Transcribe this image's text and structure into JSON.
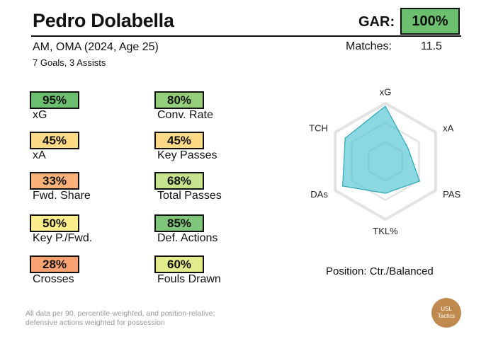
{
  "player": {
    "name": "Pedro Dolabella",
    "subtitle": "AM, OMA (2024, Age 25)",
    "stats_line": "7 Goals,  3 Assists"
  },
  "gar": {
    "label": "GAR:",
    "value": "100%",
    "color": "#6cbf6e"
  },
  "matches": {
    "label": "Matches:",
    "value": "11.5"
  },
  "metrics": [
    {
      "label": "xG",
      "value": "95%",
      "color": "#6cbf6e"
    },
    {
      "label": "Conv. Rate",
      "value": "80%",
      "color": "#95cf7c"
    },
    {
      "label": "xA",
      "value": "45%",
      "color": "#fbd985"
    },
    {
      "label": "Key Passes",
      "value": "45%",
      "color": "#fbd985"
    },
    {
      "label": "Fwd. Share",
      "value": "33%",
      "color": "#fbb27a"
    },
    {
      "label": "Total Passes",
      "value": "68%",
      "color": "#c5e38d"
    },
    {
      "label": "Key P./Fwd.",
      "value": "50%",
      "color": "#fdee8d"
    },
    {
      "label": "Def. Actions",
      "value": "85%",
      "color": "#7fc57a"
    },
    {
      "label": "Crosses",
      "value": "28%",
      "color": "#f9a271"
    },
    {
      "label": "Fouls Drawn",
      "value": "60%",
      "color": "#e3ec8c"
    }
  ],
  "chart_data": {
    "type": "radar",
    "axes": [
      "xG",
      "xA",
      "PAS",
      "TKL%",
      "DAs",
      "TCH"
    ],
    "values": [
      0.95,
      0.45,
      0.68,
      0.55,
      0.85,
      0.8
    ],
    "rings": 3,
    "fill_color": "#4ec3d1",
    "stroke_color": "#2aa8b8"
  },
  "position_text": "Position: Ctr./Balanced",
  "footnote": {
    "line1": "All data per 90, percentile-weighted, and position-relative;",
    "line2": "defensive actions weighted for possession"
  },
  "logo": {
    "line1": "USL",
    "line2": "Tactics"
  }
}
